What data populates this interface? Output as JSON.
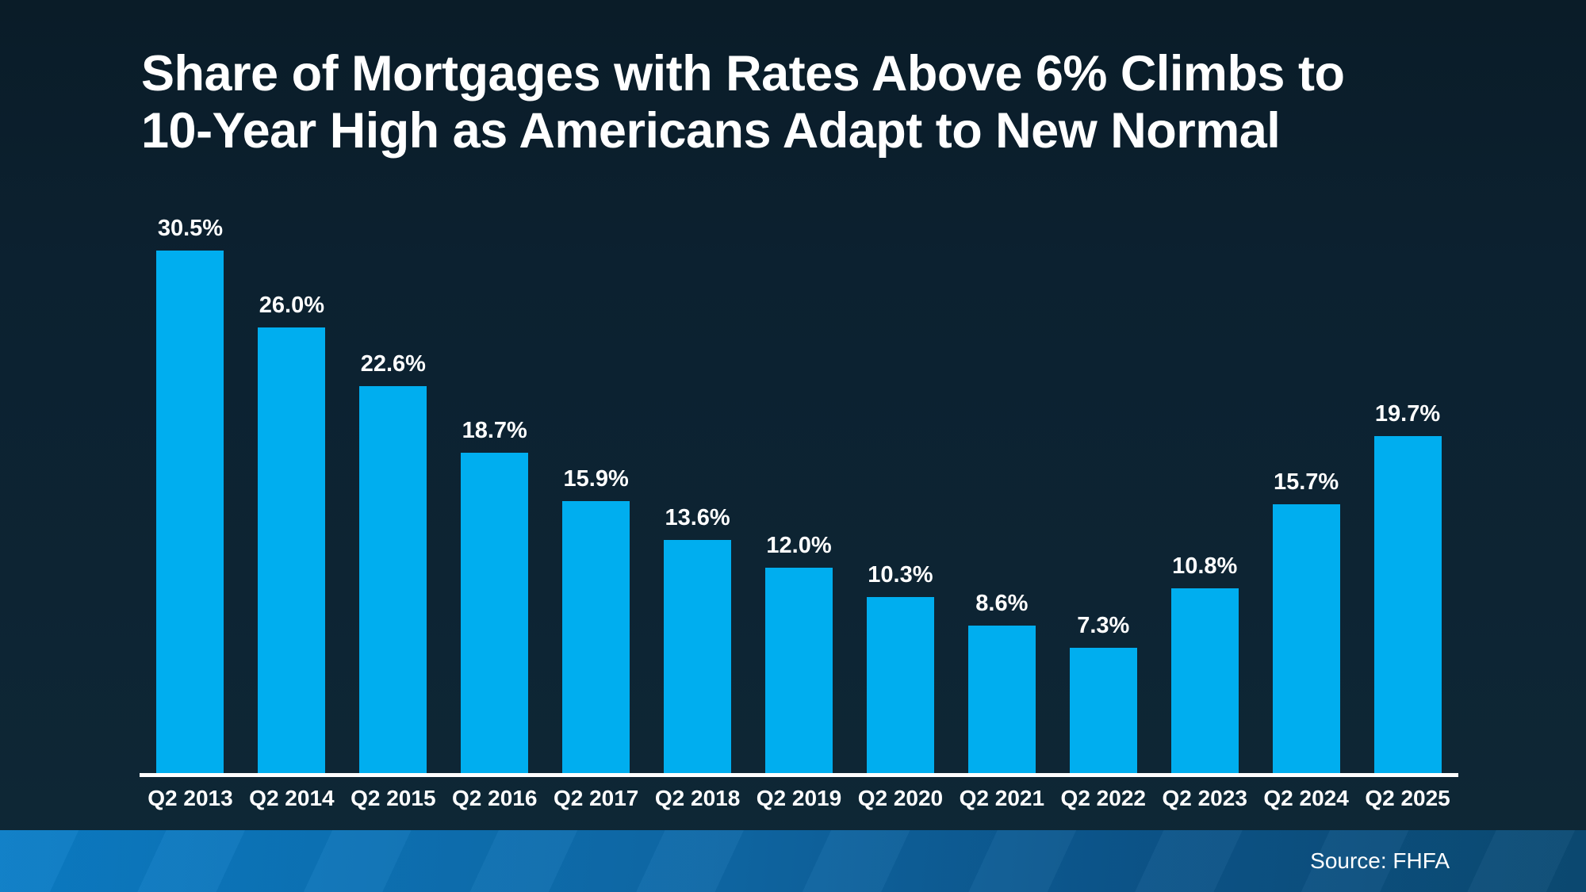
{
  "title": {
    "line1": "Share of Mortgages with Rates Above 6% Climbs to",
    "line2": "10-Year High as Americans Adapt to New Normal"
  },
  "source": {
    "label": "Source: FHFA"
  },
  "colors": {
    "bar": "#00aeef",
    "background_top": "#0a1c28",
    "background_bottom": "#0e2836",
    "baseline": "#ffffff",
    "band_left": "#0b7dc6",
    "band_right": "#0b4a73",
    "text": "#ffffff"
  },
  "chart_data": {
    "type": "bar",
    "title": "Share of Mortgages with Rates Above 6% Climbs to 10-Year High as Americans Adapt to New Normal",
    "categories": [
      "Q2 2013",
      "Q2 2014",
      "Q2 2015",
      "Q2 2016",
      "Q2 2017",
      "Q2 2018",
      "Q2 2019",
      "Q2 2020",
      "Q2 2021",
      "Q2 2022",
      "Q2 2023",
      "Q2 2024",
      "Q2 2025"
    ],
    "values": [
      30.5,
      26.0,
      22.6,
      18.7,
      15.9,
      13.6,
      12.0,
      10.3,
      8.6,
      7.3,
      10.8,
      15.7,
      19.7
    ],
    "labels": [
      "30.5%",
      "26.0%",
      "22.6%",
      "18.7%",
      "15.9%",
      "13.6%",
      "12.0%",
      "10.3%",
      "8.6%",
      "7.3%",
      "10.8%",
      "15.7%",
      "19.7%"
    ],
    "xlabel": "",
    "ylabel": "",
    "ylim": [
      0,
      31.2
    ],
    "grid": false,
    "legend": false,
    "legend_position": "none",
    "bar_color": "#00aeef",
    "value_labels_shown": true,
    "y_axis_shown": false,
    "source_note": "Source: FHFA"
  }
}
